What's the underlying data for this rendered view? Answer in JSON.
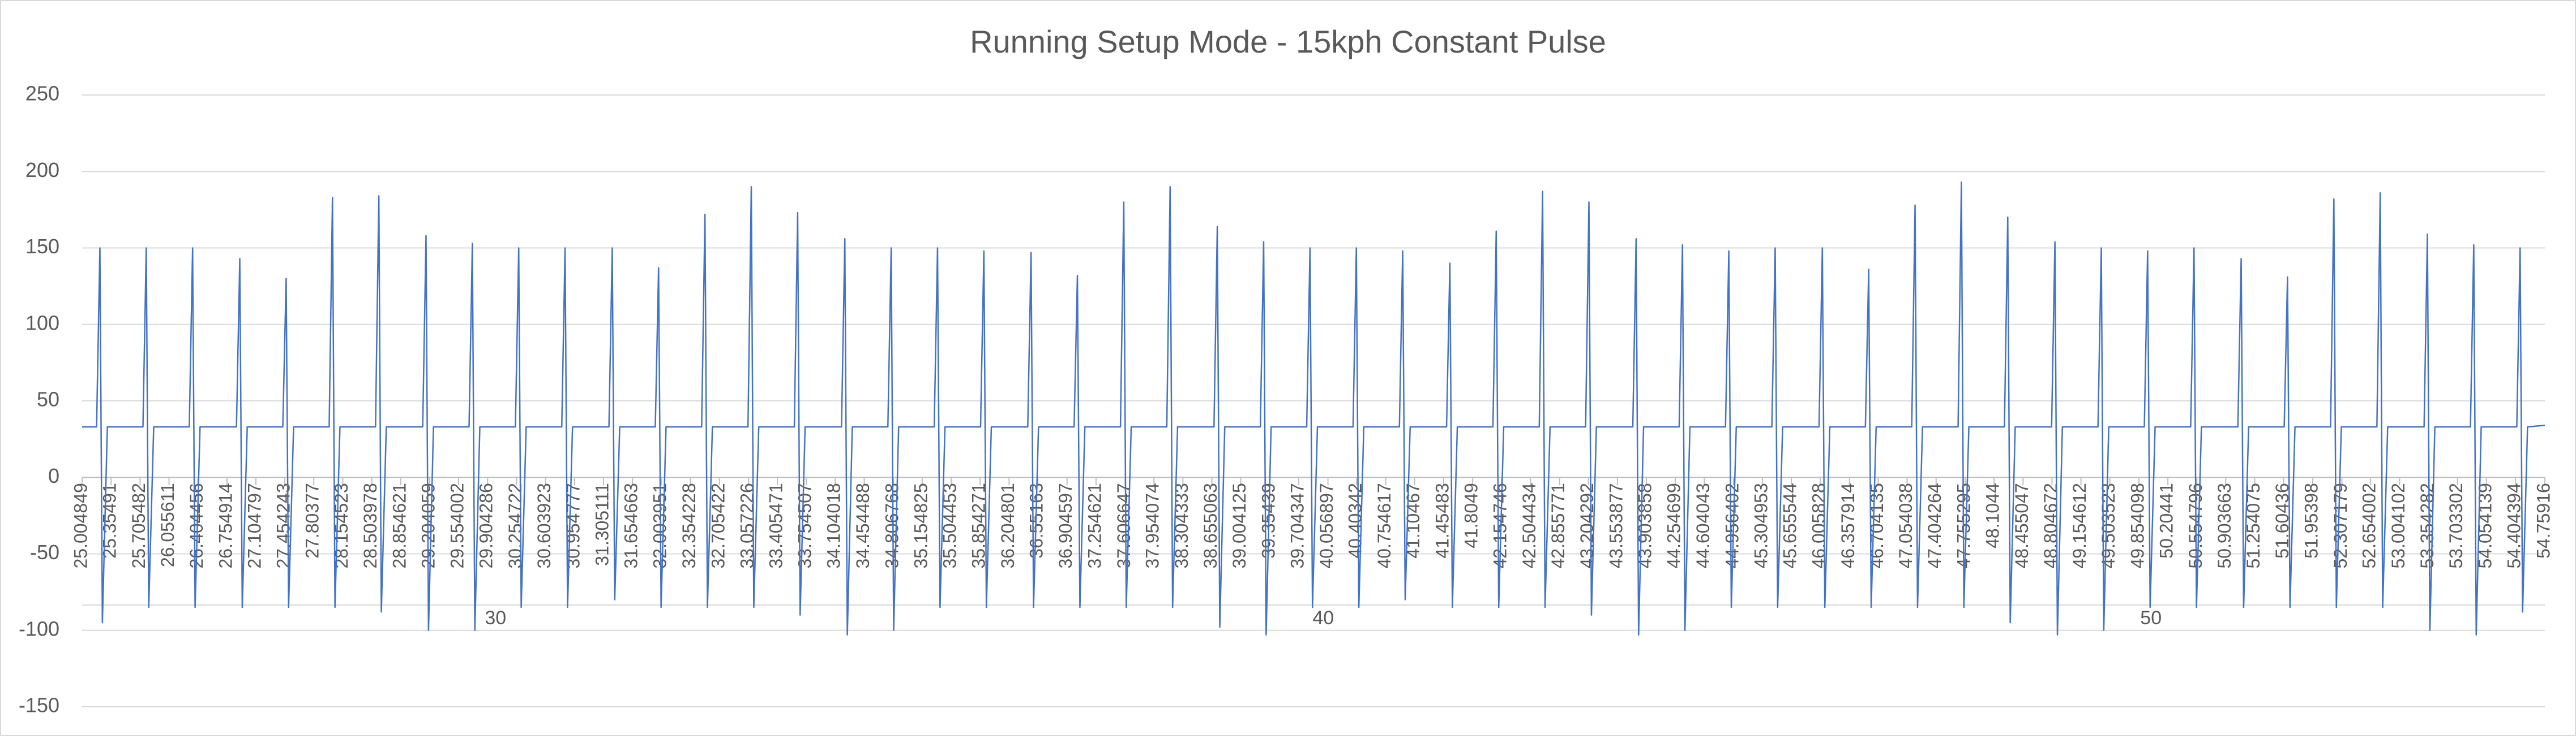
{
  "chart_data": {
    "type": "line",
    "title": "Running Setup Mode - 15kph Constant Pulse",
    "color": "#4472c4",
    "grid": true,
    "ylim": [
      -150,
      250
    ],
    "yticks": [
      -150,
      -100,
      -50,
      0,
      50,
      100,
      150,
      200,
      250
    ],
    "xlim": [
      25.004849,
      54.75916
    ],
    "xticks": [
      25.004849,
      25.35491,
      25.705482,
      26.055611,
      26.404456,
      26.754914,
      27.104797,
      27.454243,
      27.80377,
      28.154523,
      28.503978,
      28.854621,
      29.204059,
      29.554002,
      29.904286,
      30.254722,
      30.603923,
      30.954777,
      31.305111,
      31.654663,
      32.003951,
      32.354228,
      32.705422,
      33.057226,
      33.405471,
      33.754507,
      34.104018,
      34.454488,
      34.806768,
      35.154825,
      35.504453,
      35.854271,
      36.204801,
      36.55163,
      36.904597,
      37.254621,
      37.606647,
      37.954074,
      38.304333,
      38.655063,
      39.004125,
      39.35439,
      39.704347,
      40.056897,
      40.40342,
      40.754617,
      41.10467,
      41.45483,
      41.8049,
      42.154746,
      42.504434,
      42.855771,
      43.204292,
      43.553877,
      43.903858,
      44.254699,
      44.604043,
      44.956402,
      45.304953,
      45.655544,
      46.005828,
      46.357914,
      46.704135,
      47.054038,
      47.404264,
      47.755295,
      48.1044,
      48.455047,
      48.804672,
      49.154612,
      49.503523,
      49.854098,
      50.20441,
      50.554796,
      50.903663,
      51.254075,
      51.60436,
      51.95398,
      52.307179,
      52.654002,
      53.004102,
      53.354282,
      53.703302,
      54.054139,
      54.404394,
      54.75916
    ],
    "x_group_labels": [
      30,
      40,
      50
    ],
    "x": [
      25.004849,
      25.18,
      25.22,
      25.25,
      25.31,
      25.74,
      25.78,
      25.81,
      25.87,
      26.3,
      26.34,
      26.37,
      26.43,
      26.87,
      26.91,
      26.94,
      27.0,
      27.43,
      27.47,
      27.5,
      27.56,
      27.99,
      28.03,
      28.06,
      28.12,
      28.55,
      28.59,
      28.62,
      28.68,
      29.12,
      29.16,
      29.19,
      29.25,
      29.68,
      29.72,
      29.75,
      29.81,
      30.24,
      30.28,
      30.31,
      30.37,
      30.8,
      30.84,
      30.87,
      30.93,
      31.37,
      31.41,
      31.44,
      31.5,
      31.93,
      31.97,
      32.0,
      32.06,
      32.49,
      32.53,
      32.56,
      32.62,
      33.05,
      33.09,
      33.12,
      33.18,
      33.61,
      33.65,
      33.68,
      33.74,
      34.18,
      34.22,
      34.25,
      34.31,
      34.74,
      34.78,
      34.81,
      34.87,
      35.3,
      35.34,
      35.37,
      35.43,
      35.86,
      35.9,
      35.93,
      35.99,
      36.43,
      36.47,
      36.5,
      36.56,
      36.99,
      37.03,
      37.06,
      37.12,
      37.55,
      37.59,
      37.62,
      37.68,
      38.11,
      38.15,
      38.18,
      38.24,
      38.68,
      38.72,
      38.75,
      38.81,
      39.24,
      39.28,
      39.31,
      39.37,
      39.8,
      39.84,
      39.87,
      39.93,
      40.36,
      40.4,
      40.43,
      40.49,
      40.92,
      40.96,
      40.99,
      41.05,
      41.49,
      41.53,
      41.56,
      41.62,
      42.05,
      42.09,
      42.12,
      42.18,
      42.61,
      42.65,
      42.68,
      42.74,
      43.17,
      43.21,
      43.24,
      43.3,
      43.74,
      43.78,
      43.81,
      43.87,
      44.3,
      44.34,
      44.37,
      44.43,
      44.86,
      44.9,
      44.93,
      44.99,
      45.42,
      45.46,
      45.49,
      45.55,
      45.99,
      46.03,
      46.06,
      46.12,
      46.55,
      46.59,
      46.62,
      46.68,
      47.11,
      47.15,
      47.18,
      47.24,
      47.67,
      47.71,
      47.74,
      47.8,
      48.23,
      48.27,
      48.3,
      48.36,
      48.8,
      48.84,
      48.87,
      48.93,
      49.36,
      49.4,
      49.43,
      49.49,
      49.92,
      49.96,
      49.99,
      50.05,
      50.48,
      50.52,
      50.55,
      50.61,
      51.05,
      51.09,
      51.12,
      51.18,
      51.61,
      51.65,
      51.68,
      51.74,
      52.17,
      52.21,
      52.24,
      52.3,
      52.73,
      52.77,
      52.8,
      52.86,
      53.3,
      53.34,
      53.37,
      53.43,
      53.86,
      53.9,
      53.93,
      53.99,
      54.42,
      54.46,
      54.49,
      54.55,
      54.75916
    ],
    "values": [
      33,
      33,
      150,
      -95,
      33,
      33,
      150,
      -85,
      33,
      33,
      150,
      -85,
      33,
      33,
      143,
      -85,
      33,
      33,
      130,
      -85,
      33,
      33,
      183,
      -85,
      33,
      33,
      184,
      -88,
      33,
      33,
      158,
      -100,
      33,
      33,
      153,
      -100,
      33,
      33,
      150,
      -85,
      33,
      33,
      150,
      -85,
      33,
      33,
      150,
      -80,
      33,
      33,
      137,
      -85,
      33,
      33,
      172,
      -85,
      33,
      33,
      190,
      -85,
      33,
      33,
      173,
      -90,
      33,
      33,
      156,
      -103,
      33,
      33,
      150,
      -100,
      33,
      33,
      150,
      -85,
      33,
      33,
      148,
      -85,
      33,
      33,
      147,
      -85,
      33,
      33,
      132,
      -85,
      33,
      33,
      180,
      -85,
      33,
      33,
      190,
      -85,
      33,
      33,
      164,
      -98,
      33,
      33,
      154,
      -103,
      33,
      33,
      150,
      -85,
      33,
      33,
      150,
      -85,
      33,
      33,
      148,
      -80,
      33,
      33,
      140,
      -85,
      33,
      33,
      161,
      -85,
      33,
      33,
      187,
      -85,
      33,
      33,
      180,
      -90,
      33,
      33,
      156,
      -103,
      33,
      33,
      152,
      -100,
      33,
      33,
      148,
      -85,
      33,
      33,
      150,
      -85,
      33,
      33,
      150,
      -85,
      33,
      33,
      136,
      -85,
      33,
      33,
      178,
      -85,
      33,
      33,
      193,
      -85,
      33,
      33,
      170,
      -95,
      33,
      33,
      154,
      -103,
      33,
      33,
      150,
      -100,
      33,
      33,
      148,
      -85,
      33,
      33,
      150,
      -85,
      33,
      33,
      143,
      -85,
      33,
      33,
      131,
      -85,
      33,
      33,
      182,
      -85,
      33,
      33,
      186,
      -85,
      33,
      33,
      159,
      -100,
      33,
      33,
      152,
      -103,
      33,
      33,
      150,
      -88,
      33,
      34
    ]
  }
}
